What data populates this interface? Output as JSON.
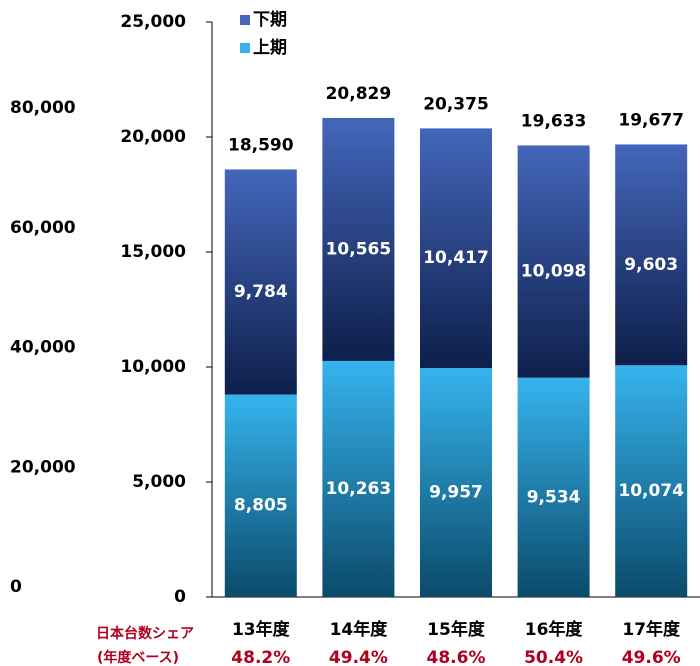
{
  "chart_data": {
    "type": "stacked_bar",
    "categories": [
      "13年度",
      "14年度",
      "15年度",
      "16年度",
      "17年度"
    ],
    "series": [
      {
        "name": "上期",
        "color": "#36b4ee",
        "values": [
          8805,
          10263,
          9957,
          9534,
          10074
        ],
        "value_labels": [
          "8,805",
          "10,263",
          "9,957",
          "9,534",
          "10,074"
        ]
      },
      {
        "name": "下期",
        "color": "#4466bb",
        "values": [
          9784,
          10565,
          10417,
          10098,
          9603
        ],
        "value_labels": [
          "9,784",
          "10,565",
          "10,417",
          "10,098",
          "9,603"
        ]
      }
    ],
    "totals": {
      "values": [
        18590,
        20829,
        20375,
        19633,
        19677
      ],
      "value_labels": [
        "18,590",
        "20,829",
        "20,375",
        "19,633",
        "19,677"
      ]
    },
    "ylim": [
      0,
      25000
    ],
    "yticks": [
      0,
      {
        "value": 5000,
        "label": "5,000"
      },
      {
        "value": 10000,
        "label": "10,000"
      },
      {
        "value": 15000,
        "label": "15,000"
      },
      {
        "value": 20000,
        "label": "20,000"
      },
      {
        "value": 25000,
        "label": "25,000"
      }
    ],
    "left_axis": {
      "ylim": [
        0,
        80000
      ],
      "yticks": [
        0,
        {
          "value": 20000,
          "label": "20,000"
        },
        {
          "value": 40000,
          "label": "40,000"
        },
        {
          "value": 60000,
          "label": "60,000"
        },
        {
          "value": 80000,
          "label": "80,000"
        }
      ]
    },
    "share": {
      "label_lines": [
        "日本台数シェア",
        "(年度ベース)"
      ],
      "values": [
        48.2,
        49.4,
        48.6,
        50.4,
        49.6
      ],
      "value_labels": [
        "48.2%",
        "49.4%",
        "48.6%",
        "50.4%",
        "49.6%"
      ]
    }
  }
}
